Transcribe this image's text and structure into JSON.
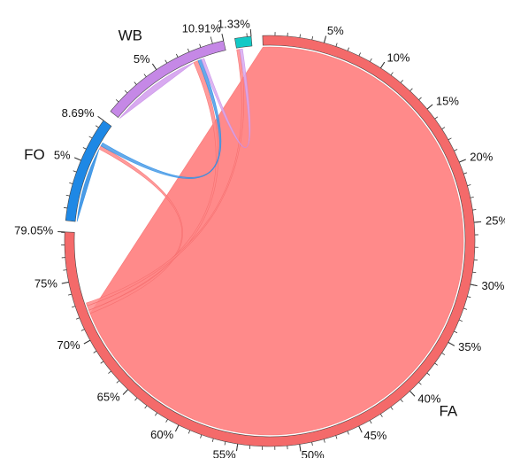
{
  "chart_data": {
    "type": "chord",
    "groups": [
      {
        "name": "FA",
        "share": 79.05,
        "color": "#f46a6a",
        "ribbon_color": "#ff8a8a"
      },
      {
        "name": "FO",
        "share": 8.69,
        "color": "#1e88e5",
        "ribbon_color": "#4a9be6"
      },
      {
        "name": "WB",
        "share": 10.91,
        "color": "#c588e6",
        "ribbon_color": "#d8aaf0"
      },
      {
        "name": "",
        "share": 1.33,
        "color": "#13c9c6",
        "ribbon_color": "#1ad0d0"
      }
    ],
    "tick_step_percent": 5,
    "ticks": {
      "FA": [
        "5%",
        "10%",
        "15%",
        "20%",
        "25%",
        "30%",
        "35%",
        "40%",
        "45%",
        "50%",
        "55%",
        "60%",
        "65%",
        "70%",
        "75%",
        "79.05%"
      ],
      "FO": [
        "5%",
        "8.69%"
      ],
      "WB": [
        "5%",
        "10.91%"
      ],
      "_teal": [
        "1.33%"
      ]
    },
    "flows": [
      {
        "from": "FA",
        "to": "FA",
        "value": 72.0
      },
      {
        "from": "FO",
        "to": "FO",
        "value": 6.5
      },
      {
        "from": "WB",
        "to": "WB",
        "value": 8.0
      },
      {
        "from": "FA",
        "to": "FO",
        "value": 0.6
      },
      {
        "from": "FA",
        "to": "WB",
        "value": 0.8
      },
      {
        "from": "FA",
        "to": "_teal",
        "value": 0.5
      },
      {
        "from": "FO",
        "to": "WB",
        "value": 0.6
      },
      {
        "from": "WB",
        "to": "_teal",
        "value": 0.5
      }
    ]
  }
}
